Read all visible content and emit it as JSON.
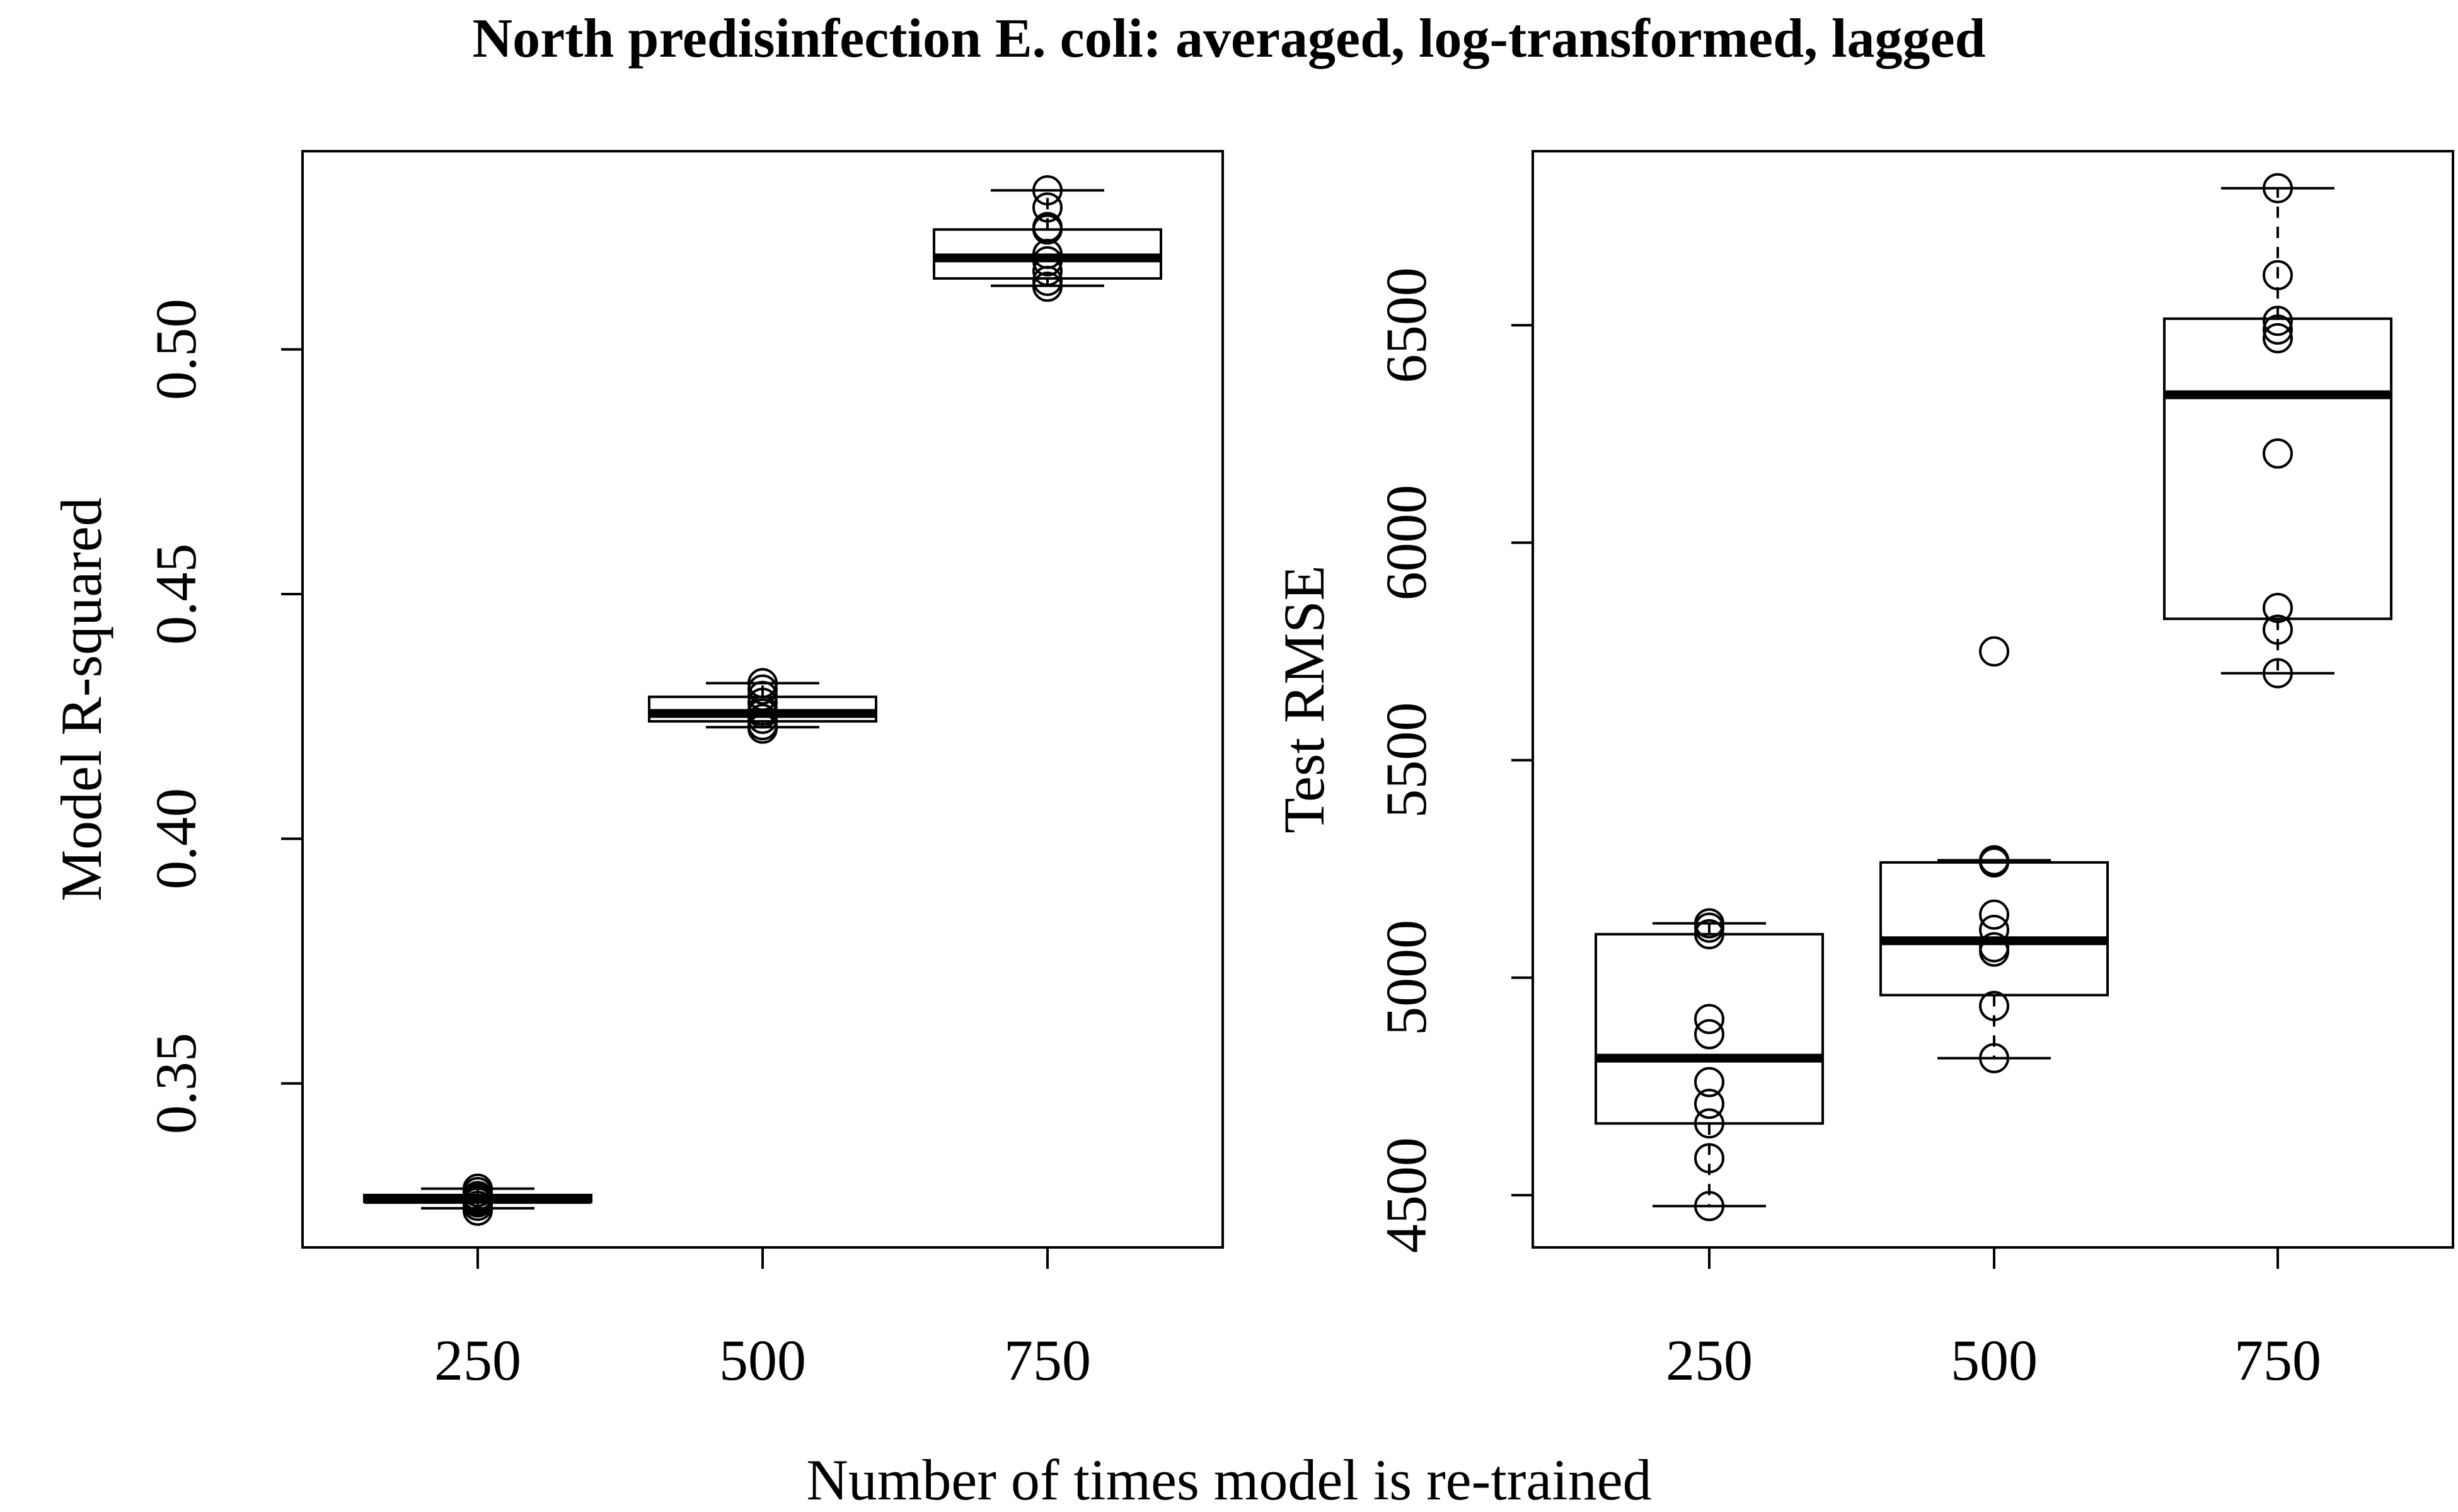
{
  "title": "North predisinfection E. coli: averaged, log-transformed, lagged",
  "xlabel": "Number of times model is re-trained",
  "chart_data": [
    {
      "type": "box",
      "ylabel": "Model R-squared",
      "ylim": [
        0.3165,
        0.5405
      ],
      "yticks": [
        0.35,
        0.4,
        0.45,
        0.5
      ],
      "ytick_labels": [
        "0.35",
        "0.40",
        "0.45",
        "0.50"
      ],
      "categories": [
        "250",
        "500",
        "750"
      ],
      "boxes": [
        {
          "category": "250",
          "whisker_low": 0.3245,
          "q1": 0.3258,
          "median": 0.3263,
          "q3": 0.3272,
          "whisker_high": 0.3285
        },
        {
          "category": "500",
          "whisker_low": 0.4228,
          "q1": 0.424,
          "median": 0.4256,
          "q3": 0.429,
          "whisker_high": 0.4318
        },
        {
          "category": "750",
          "whisker_low": 0.513,
          "q1": 0.5145,
          "median": 0.5187,
          "q3": 0.5245,
          "whisker_high": 0.5325
        }
      ],
      "points": [
        {
          "category": "250",
          "values": [
            0.324,
            0.325,
            0.3257,
            0.3261,
            0.3263,
            0.3265,
            0.327,
            0.3278,
            0.3285
          ]
        },
        {
          "category": "500",
          "values": [
            0.4225,
            0.4232,
            0.4245,
            0.4256,
            0.4262,
            0.4278,
            0.4292,
            0.4305,
            0.4318
          ]
        },
        {
          "category": "750",
          "values": [
            0.5128,
            0.514,
            0.516,
            0.518,
            0.5195,
            0.5245,
            0.525,
            0.529,
            0.5325
          ]
        }
      ]
    },
    {
      "type": "box",
      "ylabel": "Test RMSE",
      "ylim": [
        4380,
        6900
      ],
      "yticks": [
        4500,
        5000,
        5500,
        6000,
        6500
      ],
      "ytick_labels": [
        "4500",
        "5000",
        "5500",
        "6000",
        "6500"
      ],
      "categories": [
        "250",
        "500",
        "750"
      ],
      "boxes": [
        {
          "category": "250",
          "whisker_low": 4475,
          "q1": 4665,
          "median": 4815,
          "q3": 5100,
          "whisker_high": 5125
        },
        {
          "category": "500",
          "whisker_low": 4815,
          "q1": 4960,
          "median": 5085,
          "q3": 5265,
          "whisker_high": 5270
        },
        {
          "category": "750",
          "whisker_low": 5700,
          "q1": 5825,
          "median": 6340,
          "q3": 6515,
          "whisker_high": 6815
        }
      ],
      "points": [
        {
          "category": "250",
          "values": [
            4475,
            4585,
            4665,
            4710,
            4760,
            4870,
            4905,
            5100,
            5115,
            5125
          ]
        },
        {
          "category": "500",
          "values": [
            4815,
            4935,
            5060,
            5070,
            5110,
            5145,
            5265,
            5270,
            5750
          ]
        },
        {
          "category": "750",
          "values": [
            5700,
            5800,
            5850,
            6205,
            6470,
            6490,
            6510,
            6615,
            6815
          ]
        }
      ]
    }
  ]
}
